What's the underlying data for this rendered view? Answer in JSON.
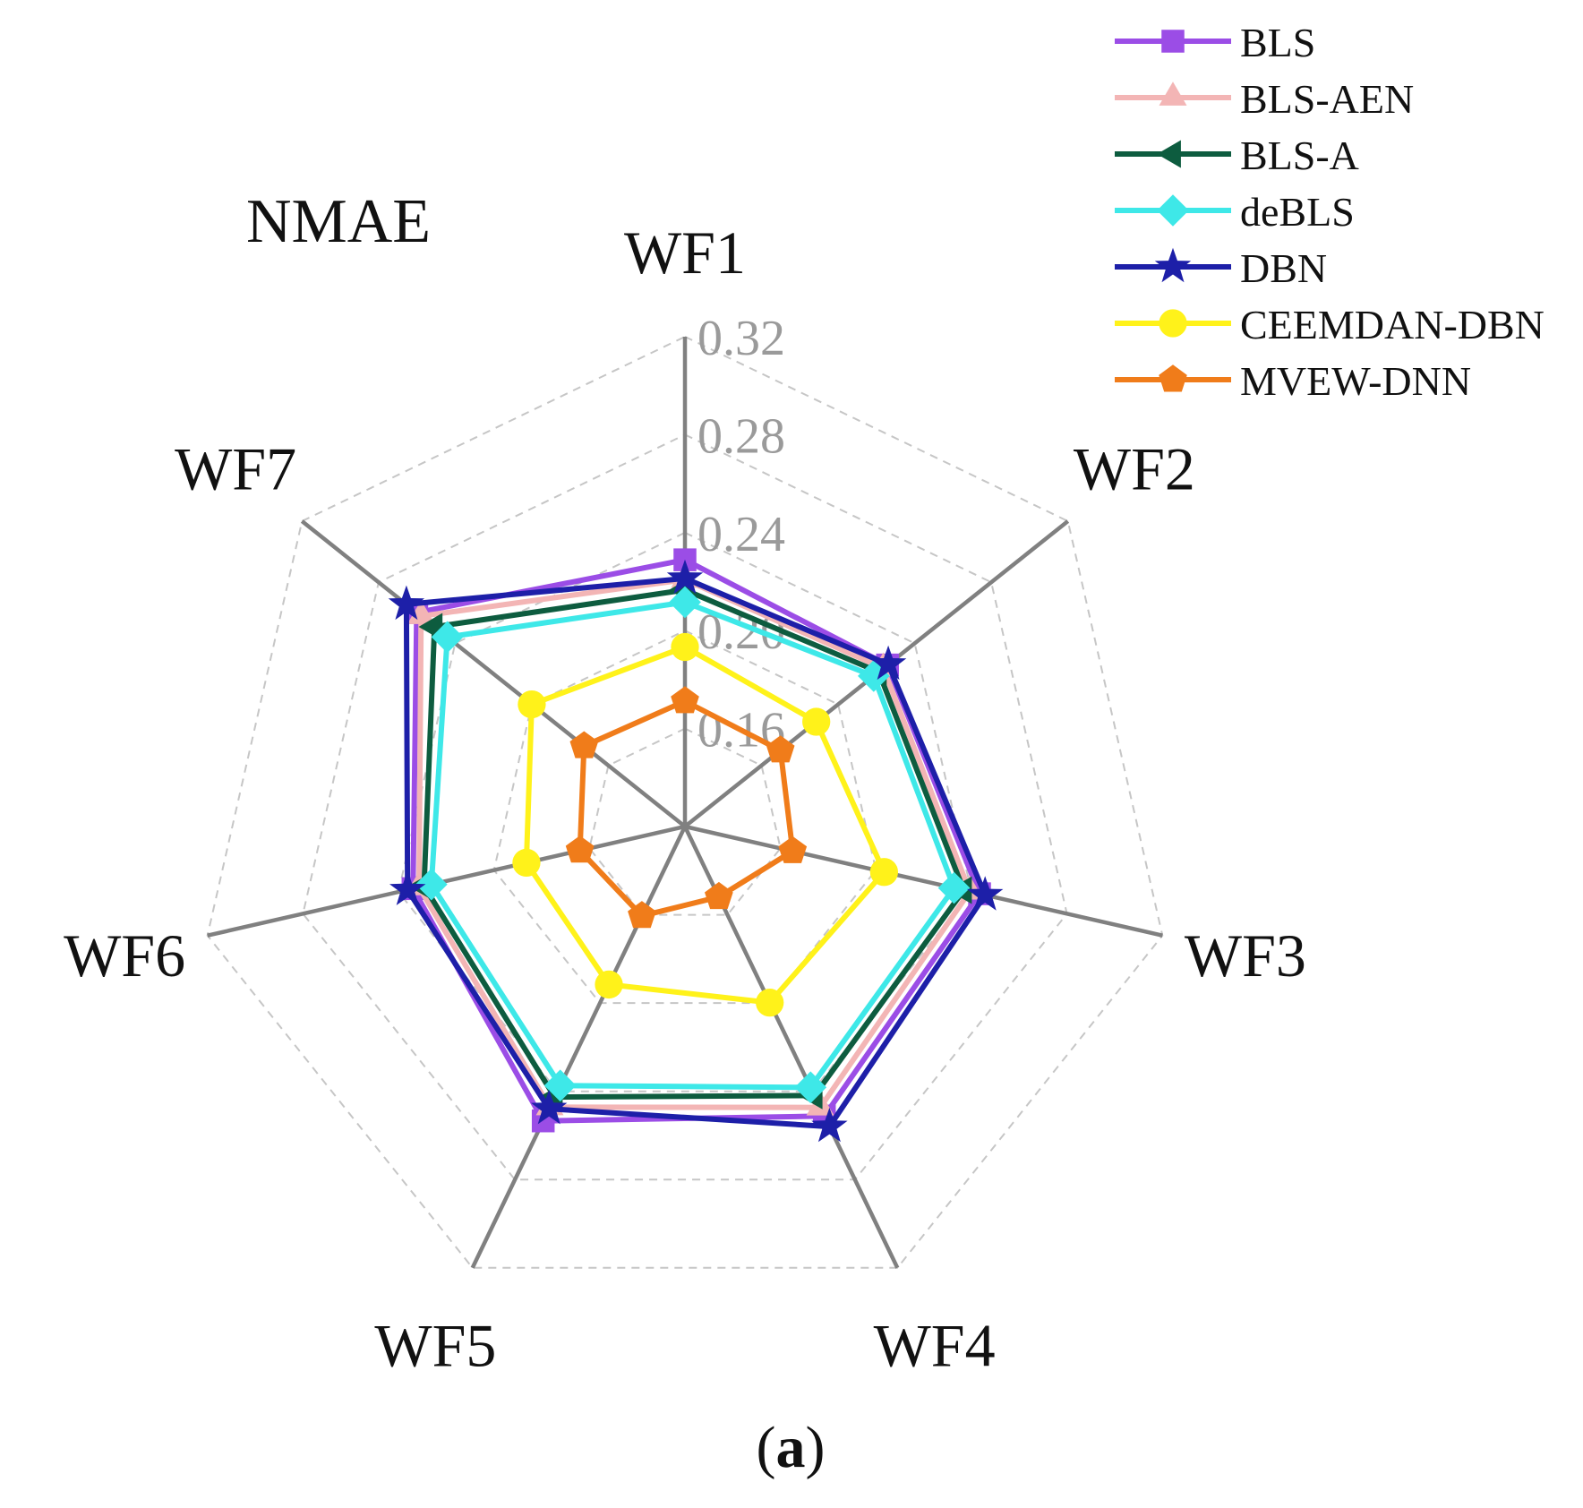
{
  "chart_data": {
    "type": "radar",
    "title": "NMAE",
    "caption_letter": "a",
    "caption_open": "(",
    "caption_close": ")",
    "axes": [
      "WF1",
      "WF2",
      "WF3",
      "WF4",
      "WF5",
      "WF6",
      "WF7"
    ],
    "r_min": 0.12,
    "r_max": 0.32,
    "ticks": [
      0.16,
      0.2,
      0.24,
      0.28,
      0.32
    ],
    "tick_labels": [
      "0.16",
      "0.20",
      "0.24",
      "0.28",
      "0.32"
    ],
    "grid": "dashed polygons",
    "legend_position": "top-right",
    "series": [
      {
        "name": "BLS",
        "color": "#9b4de6",
        "marker": "square",
        "values": [
          0.2289,
          0.2258,
          0.2434,
          0.2512,
          0.2534,
          0.2339,
          0.2601
        ]
      },
      {
        "name": "BLS-AEN",
        "color": "#f3b5b5",
        "marker": "triangle",
        "values": [
          0.2208,
          0.2236,
          0.2393,
          0.2473,
          0.2472,
          0.2314,
          0.2578
        ]
      },
      {
        "name": "BLS-A",
        "color": "#0d5c3f",
        "marker": "triangle-left",
        "values": [
          0.2166,
          0.2212,
          0.2368,
          0.2419,
          0.2426,
          0.2293,
          0.2508
        ]
      },
      {
        "name": "deBLS",
        "color": "#3ee8e8",
        "marker": "diamond",
        "values": [
          0.2116,
          0.2186,
          0.2327,
          0.2382,
          0.2374,
          0.2262,
          0.2441
        ]
      },
      {
        "name": "DBN",
        "color": "#1d1fa8",
        "marker": "star",
        "values": [
          0.2213,
          0.2262,
          0.2457,
          0.256,
          0.2479,
          0.2362,
          0.2655
        ]
      },
      {
        "name": "CEEMDAN-DBN",
        "color": "#fff21a",
        "marker": "circle",
        "values": [
          0.1933,
          0.1886,
          0.2034,
          0.1998,
          0.1916,
          0.1864,
          0.2
        ]
      },
      {
        "name": "MVEW-DNN",
        "color": "#f07c1a",
        "marker": "pentagon",
        "values": [
          0.1712,
          0.1699,
          0.1651,
          0.1519,
          0.1605,
          0.164,
          0.1727
        ]
      }
    ]
  }
}
